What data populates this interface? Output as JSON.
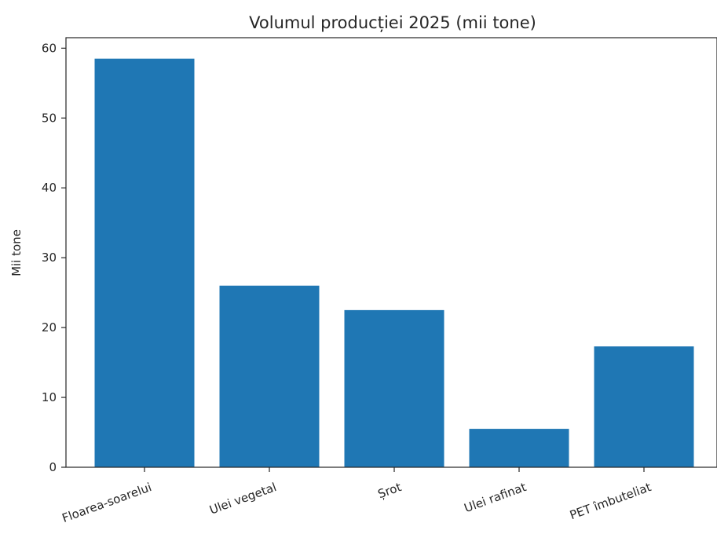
{
  "chart_data": {
    "type": "bar",
    "title": "Volumul producției 2025 (mii tone)",
    "xlabel": "",
    "ylabel": "Mii tone",
    "categories": [
      "Floarea-soarelui",
      "Ulei vegetal",
      "Șrot",
      "Ulei rafinat",
      "PET îmbuteliat"
    ],
    "values": [
      58.5,
      26.0,
      22.5,
      5.5,
      17.3
    ],
    "ylim": [
      0,
      61.5
    ],
    "yticks": [
      0,
      10,
      20,
      30,
      40,
      50,
      60
    ],
    "bar_color": "#1f77b4",
    "grid": false,
    "legend": "none"
  }
}
